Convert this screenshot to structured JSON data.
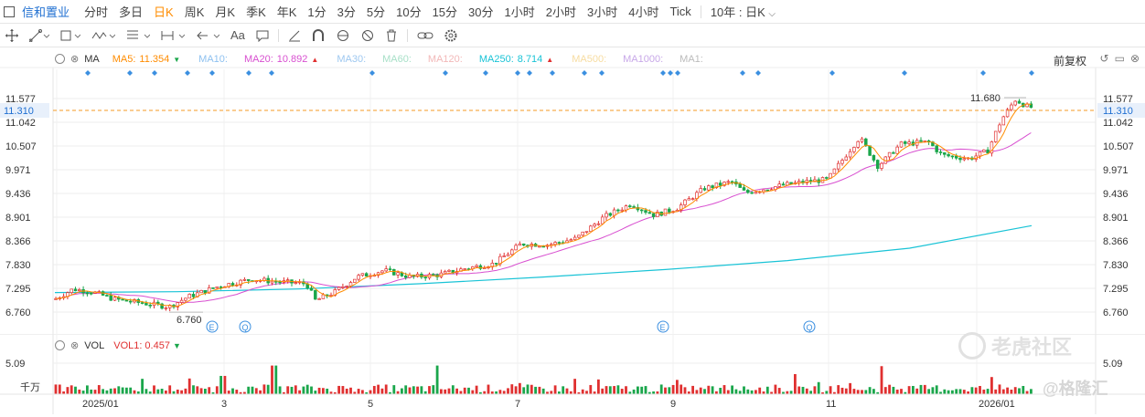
{
  "ticker": {
    "name": "信和置业"
  },
  "periods": [
    "分时",
    "多日",
    "日K",
    "周K",
    "月K",
    "季K",
    "年K",
    "1分",
    "3分",
    "5分",
    "10分",
    "15分",
    "30分",
    "1小时",
    "2小时",
    "3小时",
    "4小时",
    "Tick"
  ],
  "active_period": "日K",
  "range_select": "10年 : 日K",
  "toolbar": {
    "font_label": "Aa"
  },
  "main_legend": {
    "type": "MA",
    "items": [
      {
        "label": "MA5:",
        "value": "11.354",
        "color": "#ff8c00",
        "arrow": "▼",
        "arrow_color": "#1aa64b"
      },
      {
        "label": "MA10:",
        "value": "",
        "color": "#8ec1f0",
        "arrow": ""
      },
      {
        "label": "MA20:",
        "value": "10.892",
        "color": "#d84fd0",
        "arrow": "▲",
        "arrow_color": "#e03030"
      },
      {
        "label": "MA30:",
        "value": "",
        "color": "#9ec8f0",
        "arrow": ""
      },
      {
        "label": "MA60:",
        "value": "",
        "color": "#a8e0c8",
        "arrow": ""
      },
      {
        "label": "MA120:",
        "value": "",
        "color": "#f2b8b8",
        "arrow": ""
      },
      {
        "label": "MA250:",
        "value": "8.714",
        "color": "#19c3d6",
        "arrow": "▲",
        "arrow_color": "#e03030"
      },
      {
        "label": "MA500:",
        "value": "",
        "color": "#f7dca0",
        "arrow": ""
      },
      {
        "label": "MA1000:",
        "value": "",
        "color": "#c8a8e8",
        "arrow": ""
      },
      {
        "label": "MA1:",
        "value": "",
        "color": "#bbbbbb",
        "arrow": ""
      }
    ]
  },
  "adjust_label": "前复权",
  "price_axis": [
    "11.577",
    "11.042",
    "10.507",
    "9.971",
    "9.436",
    "8.901",
    "8.366",
    "7.830",
    "7.295",
    "6.760"
  ],
  "current_price": "11.310",
  "high_label": "11.680",
  "low_label": "6.760",
  "x_axis_labels": [
    "2025/01",
    "3",
    "5",
    "7",
    "9",
    "11",
    "2026/01"
  ],
  "vol_legend": {
    "type": "VOL",
    "label": "VOL1:",
    "value": "0.457",
    "arrow": "▼"
  },
  "vol_axis": {
    "top": "5.09",
    "unit": "千万"
  },
  "event_markers": [
    "E",
    "Q",
    "E",
    "Q"
  ],
  "watermarks": {
    "tiger": "老虎社区",
    "gelonghui": "格隆汇"
  },
  "colors": {
    "up": "#e03030",
    "down": "#1aa64b",
    "ma5": "#ff8c00",
    "ma20": "#d84fd0",
    "ma250": "#19c3d6",
    "current": "#f59a23",
    "blue_dot": "#3b8fe0"
  },
  "chart_data": {
    "type": "candlestick",
    "price_range": [
      6.76,
      11.68
    ],
    "ma250_values": [
      7.2,
      7.22,
      7.28,
      7.4,
      7.55,
      7.72,
      7.92,
      8.2,
      8.71
    ],
    "volume_range": [
      0,
      5.09
    ],
    "volume_unit": "千万"
  }
}
